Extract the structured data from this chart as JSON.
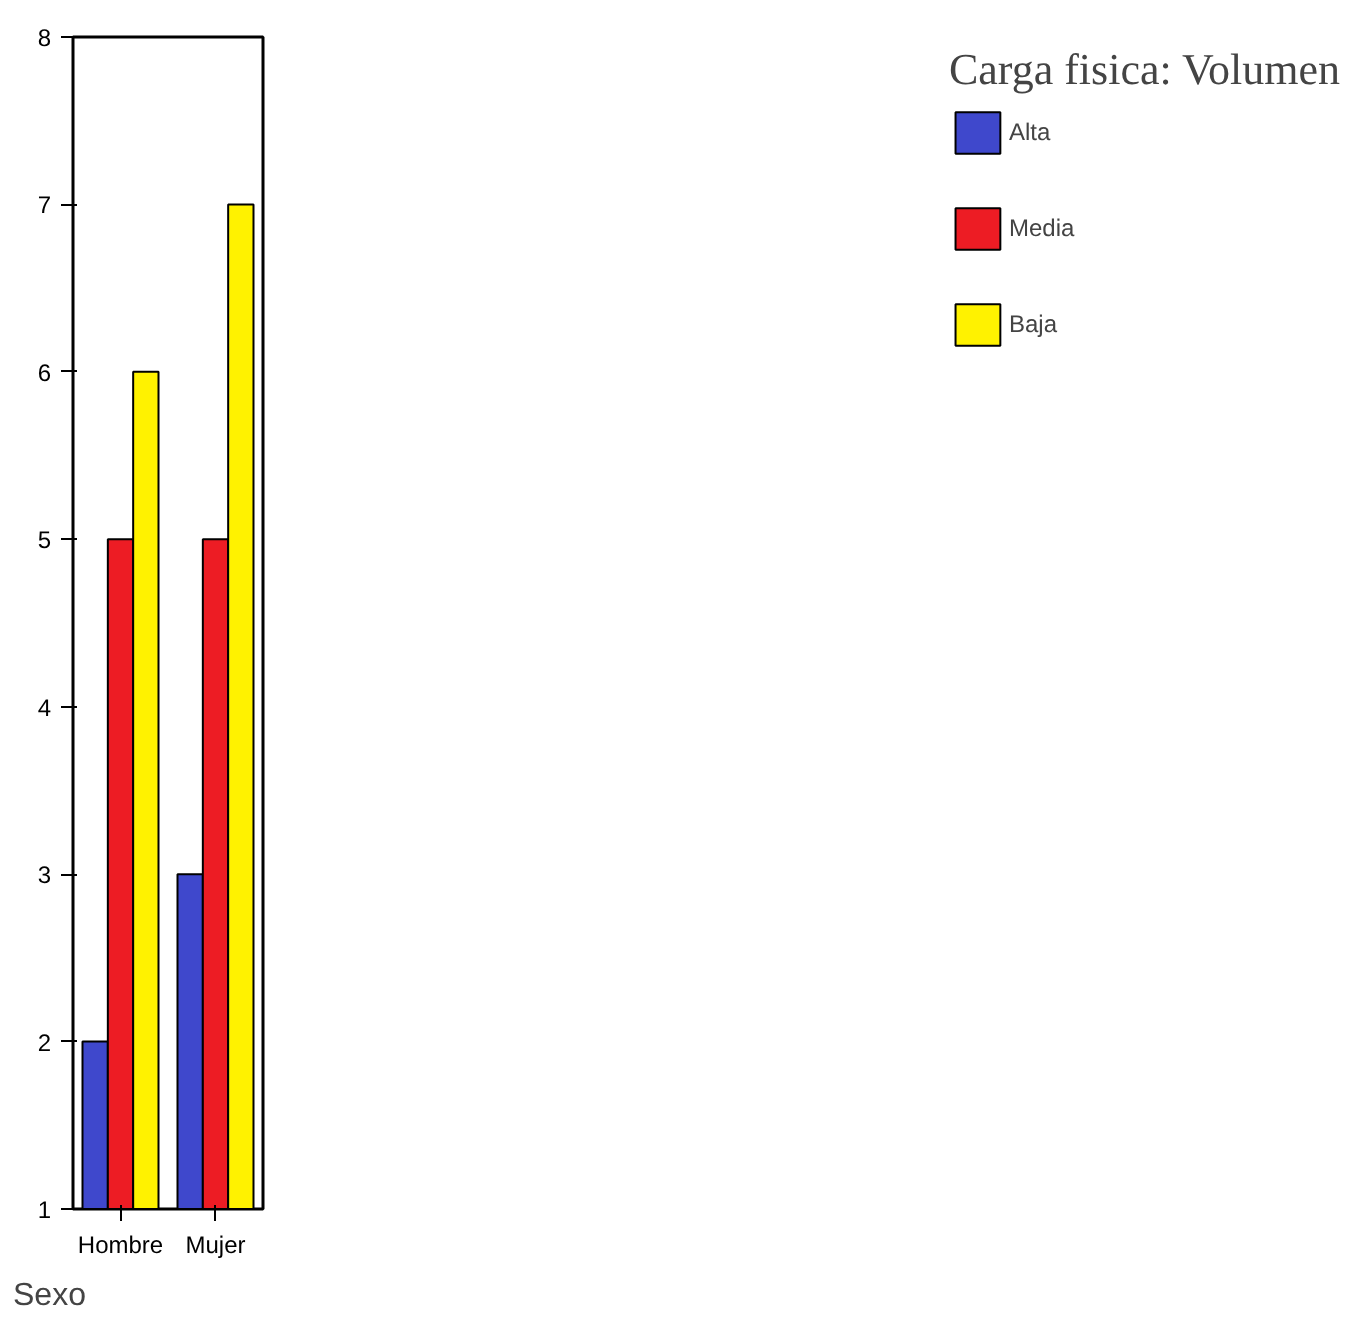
{
  "chart_data": {
    "type": "bar",
    "xlabel": "Sexo",
    "legend_title": "Carga fisica: Volumen",
    "categories": [
      "Hombre",
      "Mujer"
    ],
    "series": [
      {
        "name": "Alta",
        "color": "#3f48cc",
        "values": [
          2,
          3
        ]
      },
      {
        "name": "Media",
        "color": "#ed1c24",
        "values": [
          5,
          5
        ]
      },
      {
        "name": "Baja",
        "color": "#fff200",
        "values": [
          6,
          7
        ]
      }
    ],
    "ylim": [
      1,
      8
    ],
    "yticks": [
      1,
      2,
      3,
      4,
      5,
      6,
      7,
      8
    ],
    "grid": false,
    "legend": "right"
  }
}
